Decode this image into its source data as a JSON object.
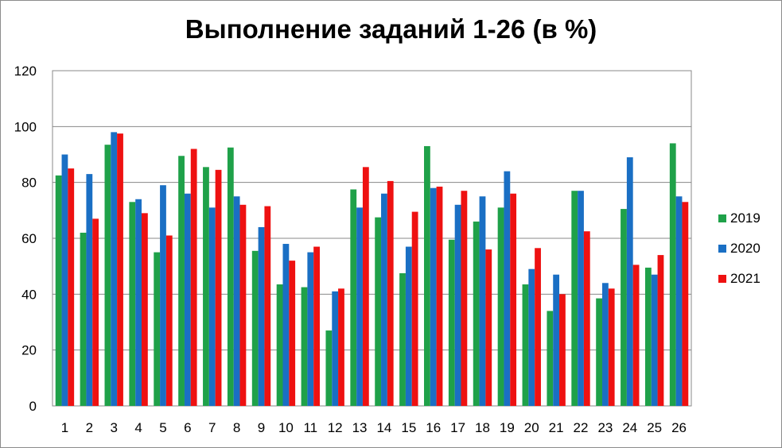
{
  "chart_data": {
    "type": "bar",
    "title": "Выполнение заданий 1-26 (в %)",
    "xlabel": "",
    "ylabel": "",
    "ylim": [
      0,
      120
    ],
    "yticks": [
      "0",
      "20",
      "40",
      "60",
      "80",
      "100",
      "120"
    ],
    "grid": true,
    "legend_position": "right",
    "categories": [
      "1",
      "2",
      "3",
      "4",
      "5",
      "6",
      "7",
      "8",
      "9",
      "10",
      "11",
      "12",
      "13",
      "14",
      "15",
      "16",
      "17",
      "18",
      "19",
      "20",
      "21",
      "22",
      "23",
      "24",
      "25",
      "26"
    ],
    "series": [
      {
        "name": "2019",
        "color": "#1fa149",
        "values": [
          82.5,
          62,
          93.5,
          73,
          55,
          89.5,
          85.5,
          92.5,
          55.5,
          43.5,
          42.5,
          27,
          77.5,
          67.5,
          47.5,
          93,
          59.5,
          66,
          71,
          43.5,
          34,
          77,
          38.5,
          70.5,
          49.5,
          94
        ]
      },
      {
        "name": "2020",
        "color": "#1a6fc4",
        "values": [
          90,
          83,
          98,
          74,
          79,
          76,
          71,
          75,
          64,
          58,
          55,
          41,
          71,
          76,
          57,
          78,
          72,
          75,
          84,
          49,
          47,
          77,
          44,
          89,
          47,
          75
        ]
      },
      {
        "name": "2021",
        "color": "#ee1111",
        "values": [
          85,
          67,
          97.5,
          69,
          61,
          92,
          84.5,
          72,
          71.5,
          52,
          57,
          42,
          85.5,
          80.5,
          69.5,
          78.5,
          77,
          56,
          76,
          56.5,
          40,
          62.5,
          42,
          50.5,
          54,
          73
        ]
      }
    ]
  }
}
